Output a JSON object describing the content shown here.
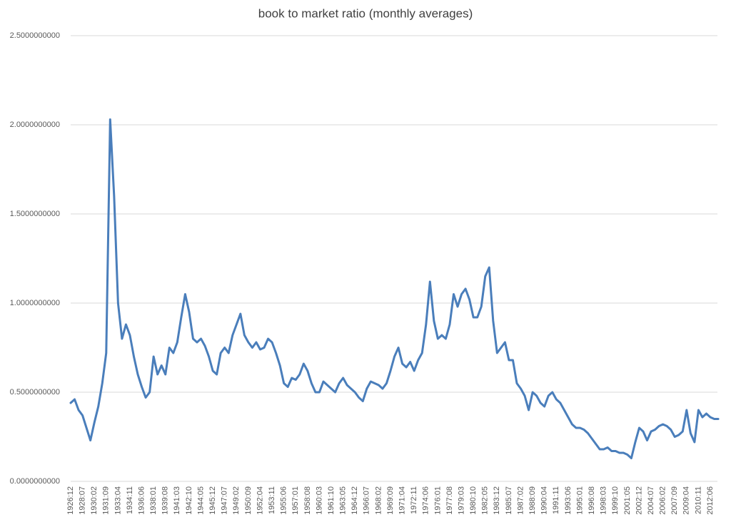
{
  "chart_data": {
    "type": "line",
    "title": "book to market ratio (monthly averages)",
    "categories": [
      "1926:12",
      null,
      null,
      "1928:07",
      null,
      null,
      "1930:02",
      null,
      null,
      "1931:09",
      null,
      null,
      "1933:04",
      null,
      null,
      "1934:11",
      null,
      null,
      "1936:06",
      null,
      null,
      "1938:01",
      null,
      null,
      "1939:08",
      null,
      null,
      "1941:03",
      null,
      null,
      "1942:10",
      null,
      null,
      "1944:05",
      null,
      null,
      "1945:12",
      null,
      null,
      "1947:07",
      null,
      null,
      "1949:02",
      null,
      null,
      "1950:09",
      null,
      null,
      "1952:04",
      null,
      null,
      "1953:11",
      null,
      null,
      "1955:06",
      null,
      null,
      "1957:01",
      null,
      null,
      "1958:08",
      null,
      null,
      "1960:03",
      null,
      null,
      "1961:10",
      null,
      null,
      "1963:05",
      null,
      null,
      "1964:12",
      null,
      null,
      "1966:07",
      null,
      null,
      "1968:02",
      null,
      null,
      "1969:09",
      null,
      null,
      "1971:04",
      null,
      null,
      "1972:11",
      null,
      null,
      "1974:06",
      null,
      null,
      "1976:01",
      null,
      null,
      "1977:08",
      null,
      null,
      "1979:03",
      null,
      null,
      "1980:10",
      null,
      null,
      "1982:05",
      null,
      null,
      "1983:12",
      null,
      null,
      "1985:07",
      null,
      null,
      "1987:02",
      null,
      null,
      "1988:09",
      null,
      null,
      "1990:04",
      null,
      null,
      "1991:11",
      null,
      null,
      "1993:06",
      null,
      null,
      "1995:01",
      null,
      null,
      "1996:08",
      null,
      null,
      "1998:03",
      null,
      null,
      "1999:10",
      null,
      null,
      "2001:05",
      null,
      null,
      "2002:12",
      null,
      null,
      "2004:07",
      null,
      null,
      "2006:02",
      null,
      null,
      "2007:09",
      null,
      null,
      "2009:04",
      null,
      null,
      "2010:11",
      null,
      null,
      "2012:06",
      null,
      null
    ],
    "values": [
      0.44,
      0.46,
      0.4,
      0.37,
      0.3,
      0.23,
      0.33,
      0.42,
      0.55,
      0.72,
      2.03,
      1.6,
      1.0,
      0.8,
      0.88,
      0.82,
      0.7,
      0.6,
      0.53,
      0.47,
      0.5,
      0.7,
      0.6,
      0.65,
      0.6,
      0.75,
      0.72,
      0.78,
      0.92,
      1.05,
      0.95,
      0.8,
      0.78,
      0.8,
      0.76,
      0.7,
      0.62,
      0.6,
      0.72,
      0.75,
      0.72,
      0.82,
      0.88,
      0.94,
      0.82,
      0.78,
      0.75,
      0.78,
      0.74,
      0.75,
      0.8,
      0.78,
      0.72,
      0.65,
      0.55,
      0.53,
      0.58,
      0.57,
      0.6,
      0.66,
      0.62,
      0.55,
      0.5,
      0.5,
      0.56,
      0.54,
      0.52,
      0.5,
      0.55,
      0.58,
      0.54,
      0.52,
      0.5,
      0.47,
      0.45,
      0.52,
      0.56,
      0.55,
      0.54,
      0.52,
      0.55,
      0.62,
      0.7,
      0.75,
      0.66,
      0.64,
      0.67,
      0.62,
      0.68,
      0.72,
      0.88,
      1.12,
      0.9,
      0.8,
      0.82,
      0.8,
      0.88,
      1.05,
      0.98,
      1.05,
      1.08,
      1.02,
      0.92,
      0.92,
      0.98,
      1.15,
      1.2,
      0.9,
      0.72,
      0.75,
      0.78,
      0.68,
      0.68,
      0.55,
      0.52,
      0.48,
      0.4,
      0.5,
      0.48,
      0.44,
      0.42,
      0.48,
      0.5,
      0.46,
      0.44,
      0.4,
      0.36,
      0.32,
      0.3,
      0.3,
      0.29,
      0.27,
      0.24,
      0.21,
      0.18,
      0.18,
      0.19,
      0.17,
      0.17,
      0.16,
      0.16,
      0.15,
      0.13,
      0.22,
      0.3,
      0.28,
      0.23,
      0.28,
      0.29,
      0.31,
      0.32,
      0.31,
      0.29,
      0.25,
      0.26,
      0.28,
      0.4,
      0.27,
      0.22,
      0.4,
      0.36,
      0.38,
      0.36,
      0.35,
      0.35
    ],
    "color": "#4a7ebb",
    "ylim": [
      0,
      2.5
    ],
    "yticks": [
      {
        "value": 0,
        "label": "0.0000000000"
      },
      {
        "value": 0.5,
        "label": "0.5000000000"
      },
      {
        "value": 1,
        "label": "1.0000000000"
      },
      {
        "value": 1.5,
        "label": "1.5000000000"
      },
      {
        "value": 2,
        "label": "2.0000000000"
      },
      {
        "value": 2.5,
        "label": "2.5000000000"
      }
    ],
    "grid": true
  }
}
